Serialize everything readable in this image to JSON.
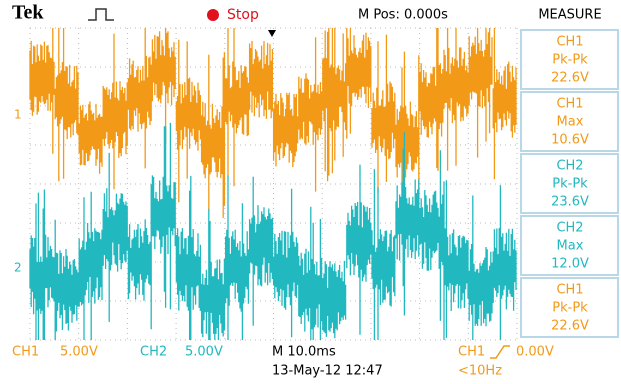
{
  "header": {
    "brand": "Tek",
    "status": "Stop",
    "position": "M Pos: 0.000s"
  },
  "measure": {
    "title": "MEASURE",
    "items": [
      {
        "source": "CH1",
        "type": "Pk-Pk",
        "value": "22.6V"
      },
      {
        "source": "CH1",
        "type": "Max",
        "value": "10.6V"
      },
      {
        "source": "CH2",
        "type": "Pk-Pk",
        "value": "23.6V"
      },
      {
        "source": "CH2",
        "type": "Max",
        "value": "12.0V"
      },
      {
        "source": "CH1",
        "type": "Pk-Pk",
        "value": "22.6V"
      }
    ]
  },
  "markers": {
    "ch1": "1",
    "ch2": "2"
  },
  "footer": {
    "ch1_label": "CH1",
    "ch1_scale": "5.00V",
    "ch2_label": "CH2",
    "ch2_scale": "5.00V",
    "timebase": "M 10.0ms",
    "trigger_source": "CH1",
    "trigger_level": "0.00V",
    "date": "13-May-12 12:47",
    "frequency": "<10Hz"
  }
}
